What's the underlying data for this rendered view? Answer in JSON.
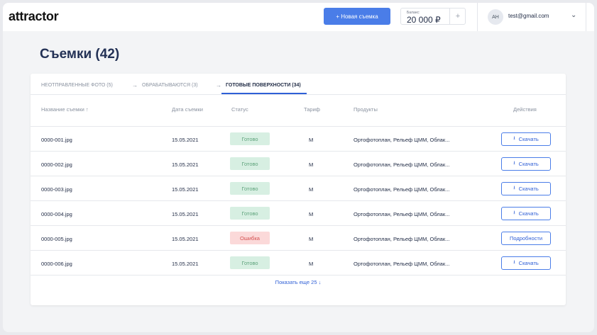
{
  "app": {
    "logo": "attractor"
  },
  "header": {
    "new_shoot_label": "+ Новая съемка",
    "balance_label": "Баланс:",
    "balance_value": "20 000 ₽",
    "add_balance": "+",
    "avatar_initials": "AH",
    "email": "test@gmail.com",
    "menu_chevron": "⌄"
  },
  "page": {
    "title": "Съемки (42)"
  },
  "tabs": [
    {
      "label": "Неотправленные фото (5)"
    },
    {
      "label": "Обрабатываются (3)"
    },
    {
      "label": "Готовые поверхности (34)"
    }
  ],
  "tab_arrow": "→",
  "columns": {
    "name": "Название съемки ↑",
    "date": "Дата съемки",
    "status": "Статус",
    "tariff": "Тариф",
    "products": "Продукты",
    "actions": "Действия"
  },
  "rows": [
    {
      "name": "0000-001.jpg",
      "date": "15.05.2021",
      "status": "Готово",
      "status_type": "ok",
      "tariff": "M",
      "products": "Ортофотоплан, Рельеф ЦММ, Облак...",
      "action": "Скачать",
      "action_icon": "download-icon"
    },
    {
      "name": "0000-002.jpg",
      "date": "15.05.2021",
      "status": "Готово",
      "status_type": "ok",
      "tariff": "M",
      "products": "Ортофотоплан, Рельеф ЦММ, Облак...",
      "action": "Скачать",
      "action_icon": "download-icon"
    },
    {
      "name": "0000-003.jpg",
      "date": "15.05.2021",
      "status": "Готово",
      "status_type": "ok",
      "tariff": "M",
      "products": "Ортофотоплан, Рельеф ЦММ, Облак...",
      "action": "Скачать",
      "action_icon": "download-icon"
    },
    {
      "name": "0000-004.jpg",
      "date": "15.05.2021",
      "status": "Готово",
      "status_type": "ok",
      "tariff": "M",
      "products": "Ортофотоплан, Рельеф ЦММ, Облак...",
      "action": "Скачать",
      "action_icon": "download-icon"
    },
    {
      "name": "0000-005.jpg",
      "date": "15.05.2021",
      "status": "Ошибка",
      "status_type": "err",
      "tariff": "M",
      "products": "Ортофотоплан, Рельеф ЦММ, Облак...",
      "action": "Подробности",
      "action_icon": ""
    },
    {
      "name": "0000-006.jpg",
      "date": "15.05.2021",
      "status": "Готово",
      "status_type": "ok",
      "tariff": "M",
      "products": "Ортофотоплан, Рельеф ЦММ, Облак...",
      "action": "Скачать",
      "action_icon": "download-icon"
    }
  ],
  "show_more": "Показать еще 25 ↓",
  "colors": {
    "accent": "#4a7de8",
    "ok_bg": "#d7efe2",
    "err_bg": "#fbd9d9"
  }
}
